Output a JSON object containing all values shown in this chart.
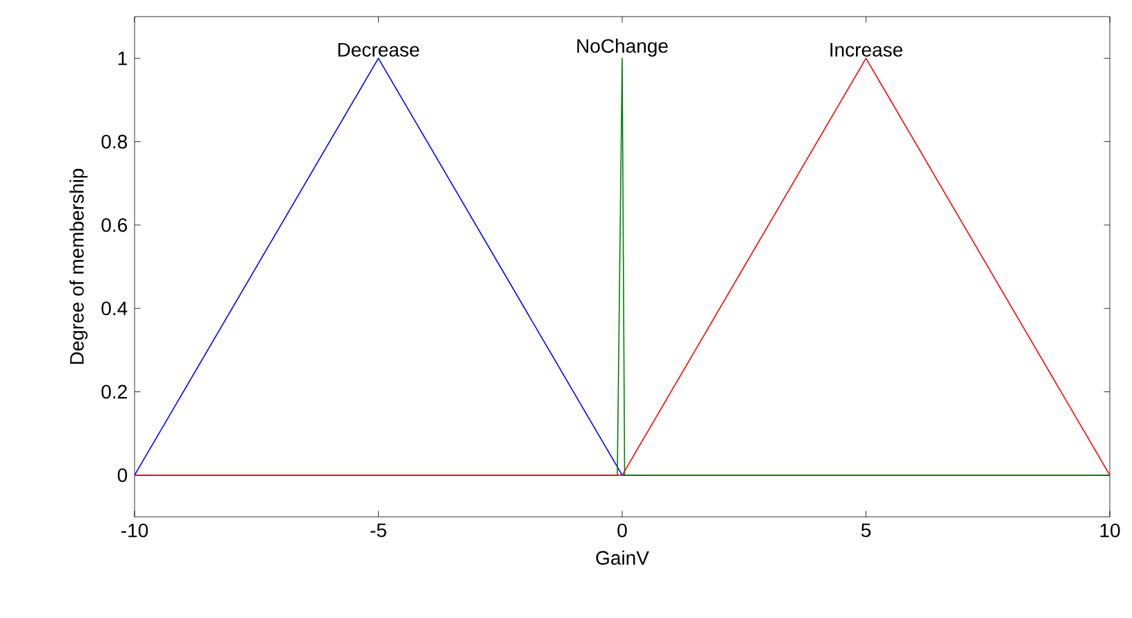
{
  "chart_data": {
    "type": "line",
    "xlabel": "GainV",
    "ylabel": "Degree of membership",
    "xlim": [
      -10,
      10
    ],
    "ylim": [
      -0.1,
      1.1
    ],
    "xticks": [
      -10,
      -5,
      0,
      5,
      10
    ],
    "yticks": [
      0,
      0.2,
      0.4,
      0.6,
      0.8,
      1
    ],
    "marker": "none",
    "line_style": "solid",
    "series": [
      {
        "color": "#0000ff",
        "x": [
          -10,
          -5,
          0,
          10
        ],
        "values": [
          0,
          1,
          0,
          0
        ]
      },
      {
        "color": "#008000",
        "x": [
          -10,
          -0.1,
          0,
          0.05,
          10
        ],
        "values": [
          0,
          0,
          1,
          0,
          0
        ]
      },
      {
        "color": "#ff0000",
        "x": [
          -10,
          0,
          5,
          10
        ],
        "values": [
          0,
          0,
          1,
          0
        ]
      }
    ],
    "annotations": [
      {
        "text": "Decrease",
        "x": -5,
        "y": 1
      },
      {
        "text": "NoChange",
        "x": 0,
        "y": 1
      },
      {
        "text": "Increase",
        "x": 5,
        "y": 1
      }
    ]
  }
}
